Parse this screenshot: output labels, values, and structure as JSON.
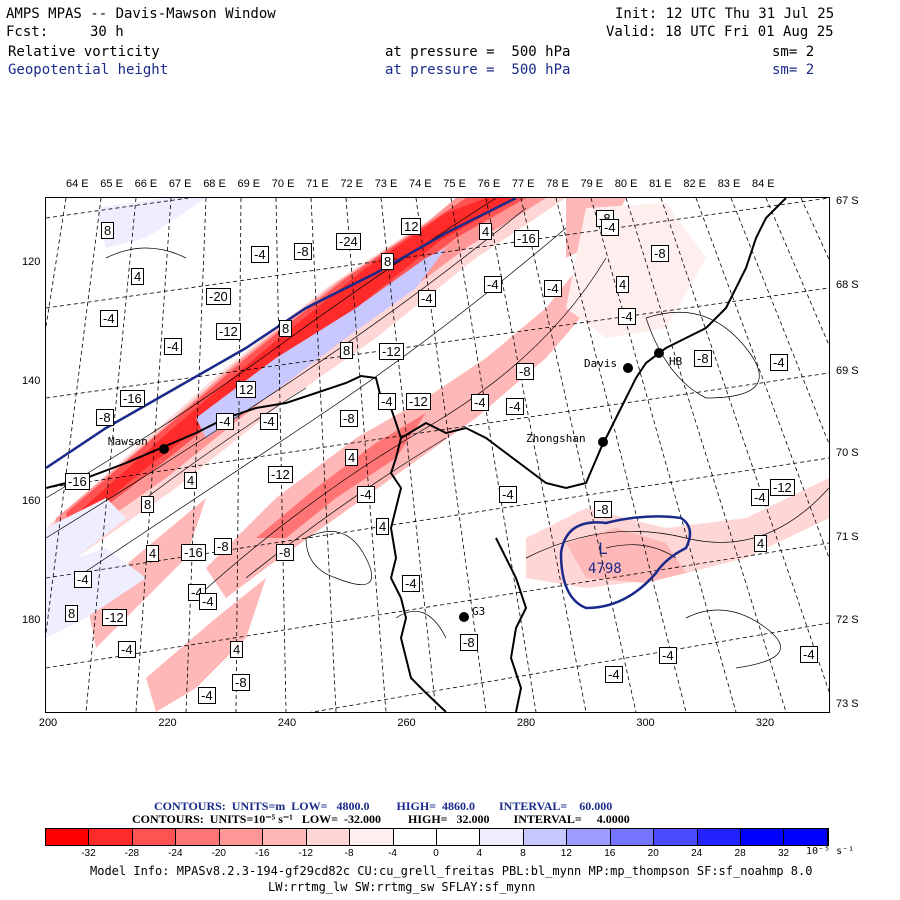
{
  "header": {
    "title": "AMPS MPAS -- Davis-Mawson Window",
    "fcst_label": "Fcst:",
    "fcst_value": "30 h",
    "init": "Init: 12 UTC Thu 31 Jul 25",
    "valid": "Valid: 18 UTC Fri 01 Aug 25",
    "field1": "Relative vorticity",
    "field1_level": "at pressure =  500 hPa",
    "field1_sm": "sm= 2",
    "field2": "Geopotential height",
    "field2_level": "at pressure =  500 hPa",
    "field2_sm": "sm= 2"
  },
  "axes": {
    "lon_labels": [
      "64 E",
      "65 E",
      "66 E",
      "67 E",
      "68 E",
      "69 E",
      "70 E",
      "71 E",
      "72 E",
      "73 E",
      "74 E",
      "75 E",
      "76 E",
      "77 E",
      "78 E",
      "79 E",
      "80 E",
      "81 E",
      "82 E",
      "83 E",
      "84 E"
    ],
    "lat_labels": [
      "67 S",
      "68 S",
      "69 S",
      "70 S",
      "71 S",
      "72 S",
      "73 S"
    ],
    "x_ticks": [
      "200",
      "220",
      "240",
      "260",
      "280",
      "300",
      "320"
    ],
    "y_ticks": [
      "120",
      "140",
      "160",
      "180"
    ]
  },
  "stations": {
    "mawson": "Mawson",
    "davis": "Davis",
    "zhongshan": "Zhongshan",
    "g3": "G3",
    "hb": "HB"
  },
  "low_center": {
    "letter": "L",
    "value": "4798"
  },
  "contour_labels": [
    "8",
    "-4",
    "-8",
    "-24",
    "12",
    "4",
    "-16",
    "-8",
    "4",
    "8",
    "-8",
    "4",
    "-4",
    "-20",
    "-4",
    "-4",
    "-4",
    "-12",
    "8",
    "-4",
    "8",
    "-12",
    "-4",
    "-8",
    "12",
    "-16",
    "-4",
    "-12",
    "-4",
    "-4",
    "-8",
    "-4",
    "-4",
    "-8",
    "4",
    "-16",
    "-12",
    "8",
    "-4",
    "4",
    "-4",
    "-8",
    "4",
    "4",
    "-16",
    "-8",
    "-8",
    "-4",
    "-4",
    "-4",
    "8",
    "-12",
    "-4",
    "-8",
    "4",
    "-4",
    "-8",
    "-4",
    "-4",
    "-4",
    "-4",
    "-12",
    "-4",
    "4",
    "-4",
    "-8",
    "-4"
  ],
  "legend": {
    "contour1": "CONTOURS:  UNITS=m  LOW=   4800.0         HIGH=  4860.0        INTERVAL=    60.000",
    "contour2": "CONTOURS:  UNITS=10⁻⁵ s⁻¹   LOW=  -32.000         HIGH=   32.000        INTERVAL=     4.0000",
    "colors": [
      "#ff0000",
      "#ff2a2a",
      "#ff5252",
      "#ff7575",
      "#ff9797",
      "#ffb8b8",
      "#ffd6d6",
      "#ffeeee",
      "#ffffff",
      "#ffffff",
      "#eeeeff",
      "#c8c8ff",
      "#9d9dff",
      "#7474ff",
      "#4a4aff",
      "#2323ff",
      "#0000ff",
      "#0000ff"
    ],
    "ticks": [
      "-32",
      "-28",
      "-24",
      "-20",
      "-16",
      "-12",
      "-8",
      "-4",
      "0",
      "4",
      "8",
      "12",
      "16",
      "20",
      "24",
      "28",
      "32"
    ],
    "unit": "10⁻⁵ s⁻¹"
  },
  "model_info": {
    "line1": "Model Info: MPASv8.2.3-194-gf29cd82c CU:cu_grell_freitas PBL:bl_mynn MP:mp_thompson SF:sf_noahmp 8.0",
    "line2": "LW:rrtmg_lw SW:rrtmg_sw SFLAY:sf_mynn"
  }
}
